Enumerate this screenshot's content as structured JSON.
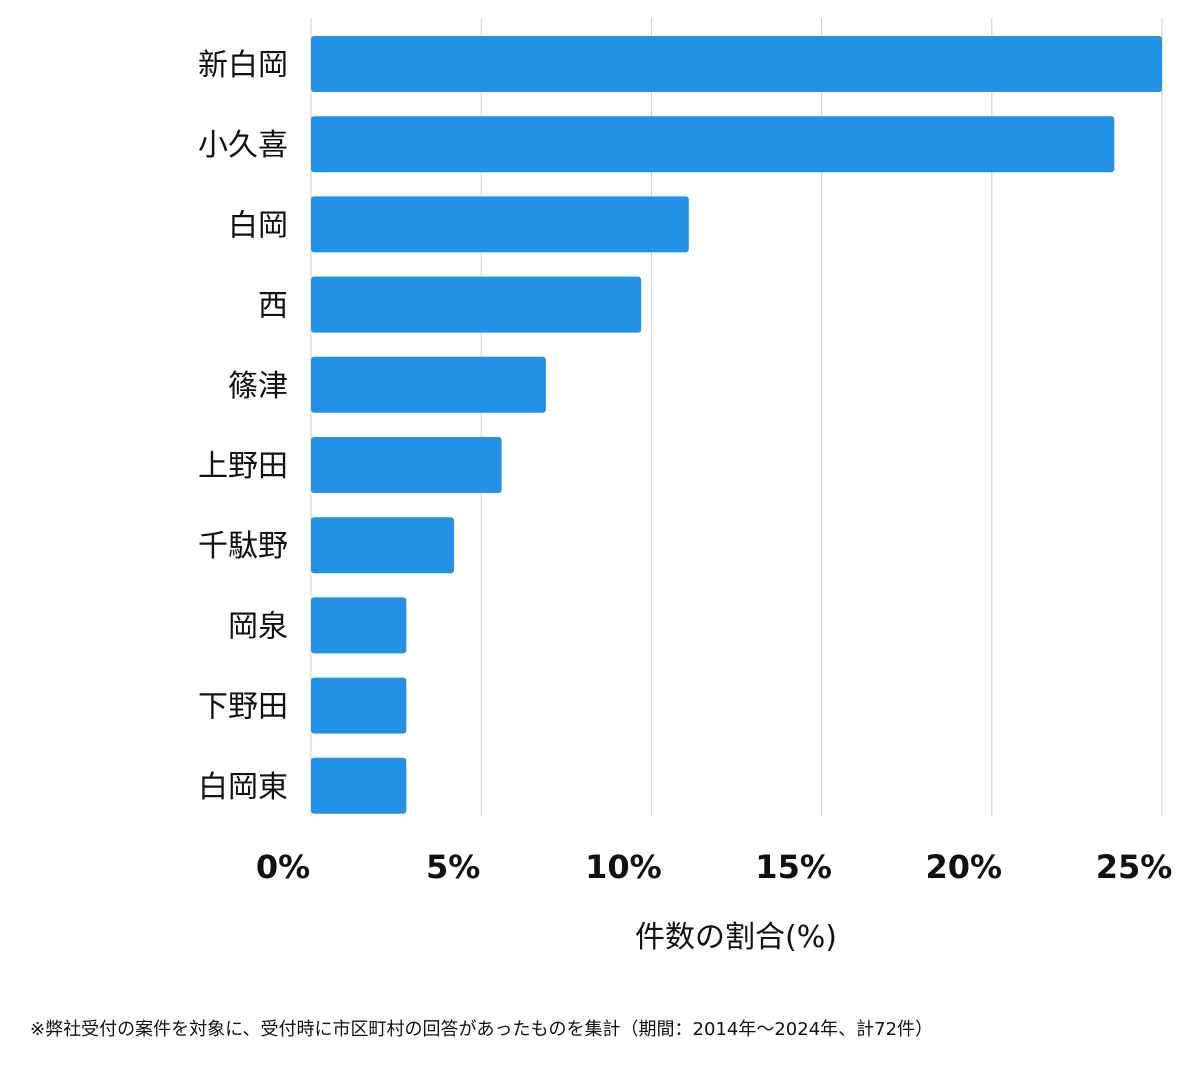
{
  "chart_data": {
    "type": "bar",
    "orientation": "horizontal",
    "categories": [
      "新白岡",
      "小久喜",
      "白岡",
      "西",
      "篠津",
      "上野田",
      "千駄野",
      "岡泉",
      "下野田",
      "白岡東"
    ],
    "values": [
      25.0,
      23.6,
      11.1,
      9.7,
      6.9,
      5.6,
      4.2,
      2.8,
      2.8,
      2.8
    ],
    "xlim": [
      0,
      25
    ],
    "xticks": [
      0,
      5,
      10,
      15,
      20,
      25
    ],
    "tick_suffix": "%",
    "xlabel": "件数の割合(%)",
    "ylabel": "",
    "grid": true,
    "bar_color": "#2391e6",
    "grid_color": "#d0d0d0"
  },
  "footnote": "※弊社受付の案件を対象に、受付時に市区町村の回答があったものを集計（期間：2014年～2024年、計72件）"
}
